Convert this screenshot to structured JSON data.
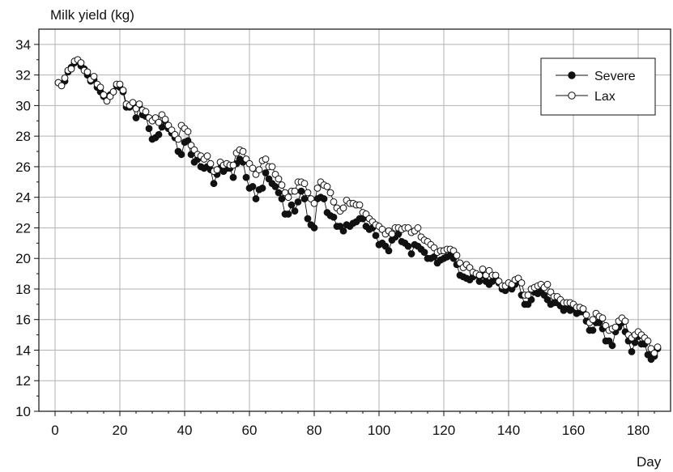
{
  "chart_data": {
    "type": "scatter",
    "ylabel": "Milk yield (kg)",
    "xlabel": "Day",
    "xlim": [
      -5,
      190
    ],
    "ylim": [
      10,
      35
    ],
    "xticks": [
      0,
      20,
      40,
      60,
      80,
      100,
      120,
      140,
      160,
      180
    ],
    "yticks": [
      10,
      12,
      14,
      16,
      18,
      20,
      22,
      24,
      26,
      28,
      30,
      32,
      34
    ],
    "grid": true,
    "legend_position": "top-right",
    "series": [
      {
        "name": "Severe",
        "marker": "filled-circle",
        "color": "#111111",
        "x": [
          1,
          2,
          3,
          4,
          5,
          6,
          7,
          8,
          9,
          10,
          11,
          12,
          13,
          14,
          15,
          16,
          17,
          18,
          19,
          20,
          21,
          22,
          23,
          24,
          25,
          26,
          27,
          28,
          29,
          30,
          31,
          32,
          33,
          34,
          35,
          36,
          37,
          38,
          39,
          40,
          41,
          42,
          43,
          44,
          45,
          46,
          47,
          48,
          49,
          50,
          51,
          52,
          53,
          54,
          55,
          56,
          57,
          58,
          59,
          60,
          61,
          62,
          63,
          64,
          65,
          66,
          67,
          68,
          69,
          70,
          71,
          72,
          73,
          74,
          75,
          76,
          77,
          78,
          79,
          80,
          81,
          82,
          83,
          84,
          85,
          86,
          87,
          88,
          89,
          90,
          91,
          92,
          93,
          94,
          95,
          96,
          97,
          98,
          99,
          100,
          101,
          102,
          103,
          104,
          105,
          106,
          107,
          108,
          109,
          110,
          111,
          112,
          113,
          114,
          115,
          116,
          117,
          118,
          119,
          120,
          121,
          122,
          123,
          124,
          125,
          126,
          127,
          128,
          129,
          130,
          131,
          132,
          133,
          134,
          135,
          136,
          137,
          138,
          139,
          140,
          141,
          142,
          143,
          144,
          145,
          146,
          147,
          148,
          149,
          150,
          151,
          152,
          153,
          154,
          155,
          156,
          157,
          158,
          159,
          160,
          161,
          162,
          163,
          164,
          165,
          166,
          167,
          168,
          169,
          170,
          171,
          172,
          173,
          174,
          175,
          176,
          177,
          178,
          179,
          180,
          181,
          182,
          183,
          184,
          185,
          186
        ],
        "y": [
          31.5,
          31.4,
          31.6,
          32.2,
          32.5,
          32.8,
          32.9,
          32.6,
          32.4,
          32.0,
          31.6,
          31.7,
          31.2,
          30.9,
          30.6,
          30.4,
          30.7,
          30.9,
          31.3,
          31.2,
          30.9,
          29.9,
          29.9,
          30.0,
          29.2,
          29.9,
          29.4,
          29.3,
          28.5,
          27.8,
          27.9,
          28.1,
          28.6,
          29.0,
          28.5,
          28.2,
          27.9,
          27.0,
          26.8,
          27.6,
          27.7,
          26.8,
          26.3,
          26.5,
          26.0,
          25.9,
          26.0,
          25.8,
          24.9,
          25.5,
          25.9,
          25.7,
          25.9,
          25.9,
          25.3,
          26.2,
          26.5,
          26.3,
          25.3,
          24.6,
          24.7,
          23.9,
          24.5,
          24.6,
          25.6,
          25.2,
          24.9,
          24.7,
          24.3,
          23.9,
          22.9,
          22.9,
          23.5,
          23.1,
          23.7,
          24.4,
          23.9,
          22.6,
          22.2,
          22.0,
          23.9,
          24.0,
          23.9,
          23.0,
          22.8,
          22.7,
          22.1,
          22.1,
          21.8,
          22.2,
          22.1,
          22.3,
          22.4,
          22.6,
          22.6,
          22.1,
          21.9,
          22.0,
          21.5,
          20.9,
          21.0,
          20.8,
          20.5,
          21.2,
          21.4,
          21.6,
          21.1,
          21.0,
          20.8,
          20.3,
          20.9,
          20.8,
          20.6,
          20.4,
          20.0,
          20.0,
          20.1,
          19.7,
          19.9,
          20.0,
          20.1,
          20.2,
          20.0,
          19.6,
          18.9,
          18.8,
          18.7,
          18.6,
          18.8,
          18.9,
          18.5,
          18.9,
          18.5,
          18.3,
          18.5,
          18.7,
          18.4,
          18.0,
          17.9,
          18.1,
          18.0,
          18.3,
          18.5,
          17.6,
          17.0,
          17.0,
          17.3,
          17.8,
          17.7,
          17.9,
          17.6,
          17.3,
          17.0,
          17.1,
          17.1,
          16.9,
          16.6,
          16.8,
          16.6,
          16.7,
          16.4,
          16.5,
          16.5,
          15.9,
          15.3,
          15.3,
          15.8,
          15.8,
          15.4,
          14.6,
          14.6,
          14.3,
          15.2,
          15.5,
          15.8,
          15.2,
          14.6,
          13.9,
          14.5,
          14.9,
          14.4,
          14.4,
          13.7,
          13.4,
          13.6,
          14.1
        ]
      },
      {
        "name": "Lax",
        "marker": "open-circle",
        "color": "#111111",
        "x": [
          1,
          2,
          3,
          4,
          5,
          6,
          7,
          8,
          9,
          10,
          11,
          12,
          13,
          14,
          15,
          16,
          17,
          18,
          19,
          20,
          21,
          22,
          23,
          24,
          25,
          26,
          27,
          28,
          29,
          30,
          31,
          32,
          33,
          34,
          35,
          36,
          37,
          38,
          39,
          40,
          41,
          42,
          43,
          44,
          45,
          46,
          47,
          48,
          49,
          50,
          51,
          52,
          53,
          54,
          55,
          56,
          57,
          58,
          59,
          60,
          61,
          62,
          63,
          64,
          65,
          66,
          67,
          68,
          69,
          70,
          71,
          72,
          73,
          74,
          75,
          76,
          77,
          78,
          79,
          80,
          81,
          82,
          83,
          84,
          85,
          86,
          87,
          88,
          89,
          90,
          91,
          92,
          93,
          94,
          95,
          96,
          97,
          98,
          99,
          100,
          101,
          102,
          103,
          104,
          105,
          106,
          107,
          108,
          109,
          110,
          111,
          112,
          113,
          114,
          115,
          116,
          117,
          118,
          119,
          120,
          121,
          122,
          123,
          124,
          125,
          126,
          127,
          128,
          129,
          130,
          131,
          132,
          133,
          134,
          135,
          136,
          137,
          138,
          139,
          140,
          141,
          142,
          143,
          144,
          145,
          146,
          147,
          148,
          149,
          150,
          151,
          152,
          153,
          154,
          155,
          156,
          157,
          158,
          159,
          160,
          161,
          162,
          163,
          164,
          165,
          166,
          167,
          168,
          169,
          170,
          171,
          172,
          173,
          174,
          175,
          176,
          177,
          178,
          179,
          180,
          181,
          182,
          183,
          184,
          185,
          186
        ],
        "y": [
          31.5,
          31.3,
          31.8,
          32.3,
          32.4,
          32.9,
          33.0,
          32.8,
          32.3,
          32.2,
          31.7,
          31.9,
          31.4,
          31.2,
          30.7,
          30.3,
          30.6,
          30.9,
          31.4,
          31.4,
          31.0,
          30.1,
          30.0,
          30.2,
          29.8,
          30.1,
          29.7,
          29.6,
          29.2,
          29.0,
          29.2,
          28.9,
          29.4,
          29.1,
          28.7,
          28.4,
          28.1,
          27.8,
          28.7,
          28.5,
          28.3,
          27.4,
          27.1,
          26.8,
          26.7,
          26.5,
          26.7,
          26.2,
          25.7,
          25.8,
          26.3,
          26.1,
          26.2,
          26.1,
          26.1,
          26.9,
          27.1,
          27.0,
          26.5,
          26.2,
          25.9,
          25.5,
          25.8,
          26.4,
          26.5,
          26.0,
          26.0,
          25.5,
          25.2,
          24.8,
          24.3,
          24.0,
          24.4,
          24.4,
          25.0,
          25.0,
          24.9,
          24.3,
          23.9,
          23.6,
          24.6,
          25.0,
          24.8,
          24.7,
          24.3,
          23.7,
          23.3,
          23.1,
          23.3,
          23.8,
          23.6,
          23.6,
          23.5,
          23.5,
          23.0,
          22.9,
          22.6,
          22.4,
          22.2,
          22.1,
          21.9,
          21.6,
          21.8,
          21.6,
          22.0,
          22.0,
          21.9,
          22.0,
          22.0,
          21.7,
          21.8,
          22.0,
          21.4,
          21.2,
          21.1,
          20.9,
          20.7,
          20.4,
          20.5,
          20.5,
          20.6,
          20.6,
          20.5,
          20.2,
          19.7,
          19.4,
          19.6,
          19.4,
          19.1,
          19.0,
          18.9,
          19.3,
          18.9,
          19.2,
          18.9,
          18.9,
          18.5,
          18.2,
          18.2,
          18.4,
          18.3,
          18.6,
          18.7,
          18.4,
          17.6,
          17.6,
          18.0,
          18.1,
          18.2,
          18.3,
          18.1,
          18.3,
          17.8,
          17.5,
          17.5,
          17.3,
          17.1,
          17.1,
          17.1,
          17.0,
          16.8,
          16.8,
          16.7,
          16.3,
          15.8,
          16.0,
          16.4,
          16.2,
          16.1,
          15.6,
          15.3,
          15.4,
          15.5,
          15.9,
          16.1,
          15.9,
          15.0,
          14.8,
          15.0,
          15.2,
          15.0,
          14.8,
          14.6,
          14.1,
          13.8,
          14.2
        ]
      }
    ]
  }
}
